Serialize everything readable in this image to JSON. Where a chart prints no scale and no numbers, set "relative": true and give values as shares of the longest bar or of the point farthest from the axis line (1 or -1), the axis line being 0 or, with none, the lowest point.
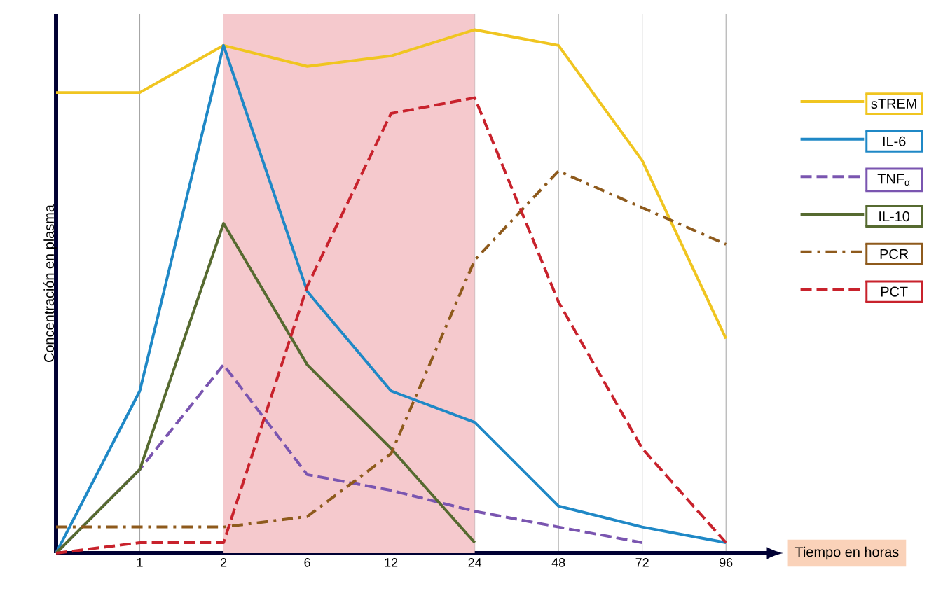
{
  "chart_data": {
    "type": "line",
    "relative": true,
    "xlabel": "Tiempo en horas",
    "ylabel": "Concentración en plasma",
    "categories": [
      null,
      "1",
      "2",
      "6",
      "12",
      "24",
      "48",
      "72",
      "96"
    ],
    "series": [
      {
        "name": "sTREM",
        "color": "#f0c520",
        "line_style": "solid",
        "values": [
          0.88,
          0.88,
          0.97,
          0.93,
          0.95,
          1,
          0.97,
          0.75,
          0.41
        ]
      },
      {
        "name": "IL-6",
        "color": "#1f88c6",
        "line_style": "solid",
        "values": [
          0,
          0.31,
          0.97,
          0.5,
          0.31,
          0.25,
          0.09,
          0.05,
          0.02
        ]
      },
      {
        "name": "TNF$_{α}$",
        "color": "#7a55b0",
        "line_style": "dashed",
        "values": [
          0,
          0.16,
          0.36,
          0.15,
          0.12,
          0.08,
          0.05,
          0.02,
          null
        ]
      },
      {
        "name": "IL-10",
        "color": "#566a30",
        "line_style": "solid",
        "values": [
          0,
          0.16,
          0.63,
          0.36,
          0.2,
          0.02,
          null,
          null,
          null
        ]
      },
      {
        "name": "PCR",
        "color": "#8e5a1c",
        "line_style": "dashdot",
        "values": [
          0.05,
          0.05,
          0.05,
          0.07,
          0.19,
          0.56,
          0.73,
          0.66,
          0.59
        ]
      },
      {
        "name": "PCT",
        "color": "#c8222c",
        "line_style": "dashed",
        "values": [
          0,
          0.02,
          0.02,
          0.51,
          0.84,
          0.87,
          0.48,
          0.2,
          0.02
        ]
      }
    ],
    "bands": [
      {
        "axis": "x",
        "from": "2",
        "to": "24",
        "color": "#f5c9cd"
      }
    ],
    "grid": "x",
    "legend": "right"
  }
}
